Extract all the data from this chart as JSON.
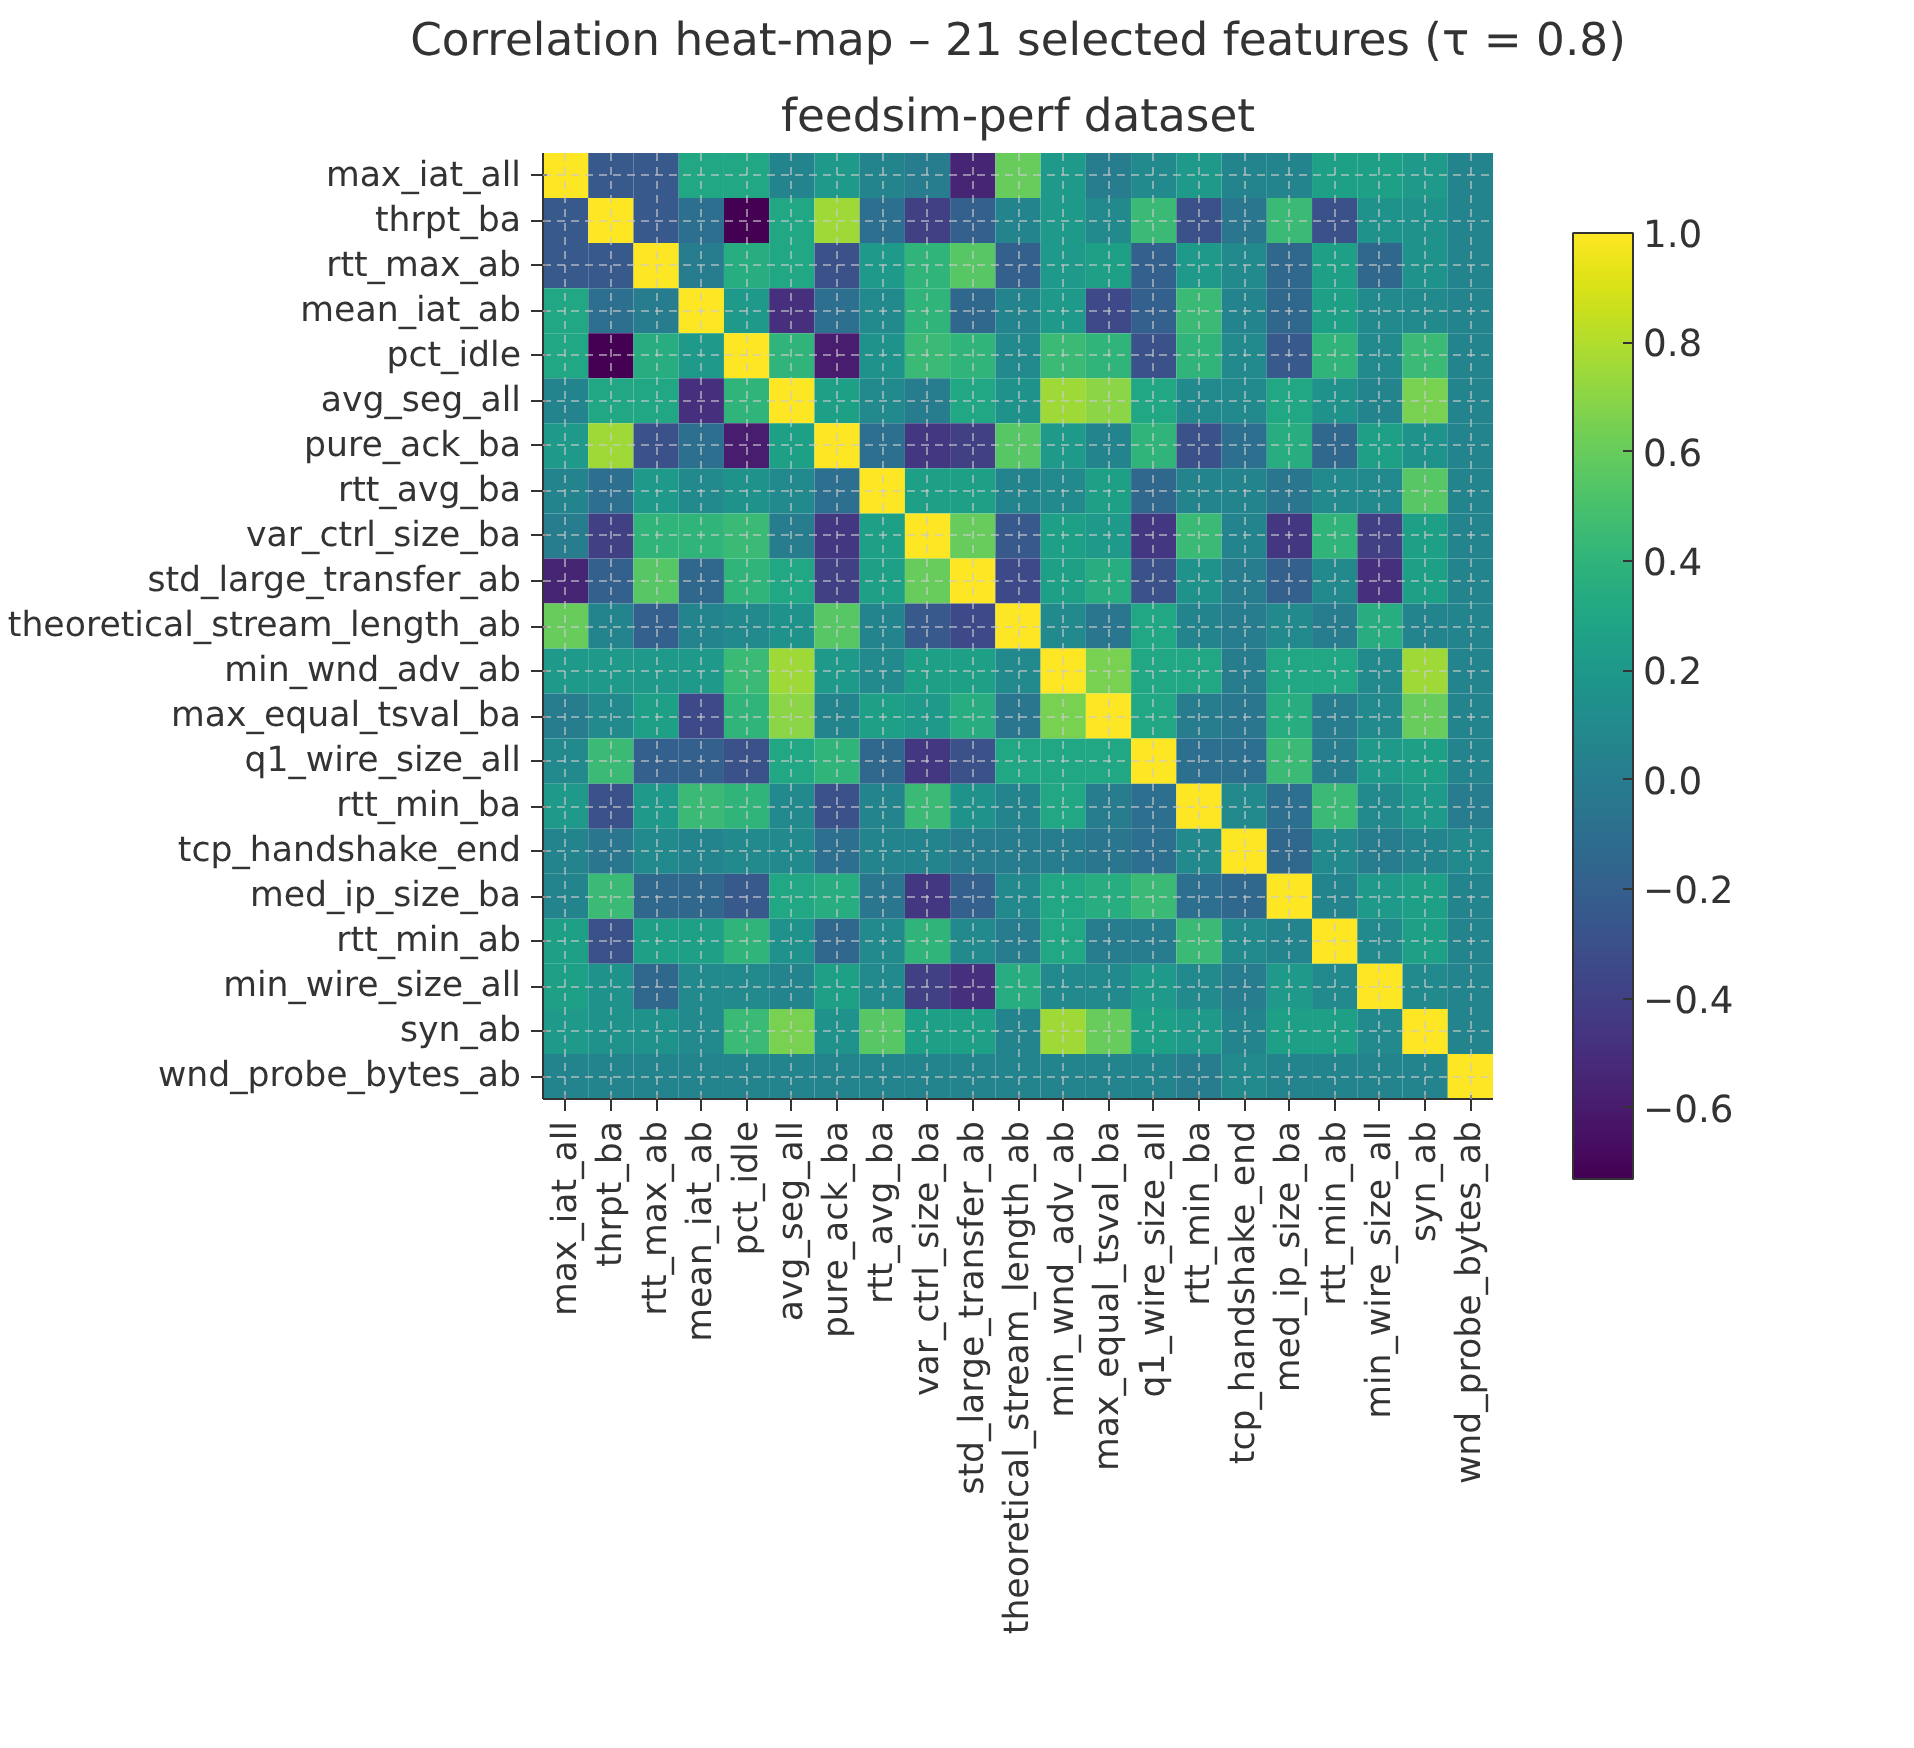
{
  "chart_data": {
    "type": "heatmap",
    "title": "Correlation heat-map – 21 selected features (τ = 0.8)",
    "subtitle": "feedsim-perf dataset",
    "categories": [
      "max_iat_all",
      "thrpt_ba",
      "rtt_max_ab",
      "mean_iat_ab",
      "pct_idle",
      "avg_seg_all",
      "pure_ack_ba",
      "rtt_avg_ba",
      "var_ctrl_size_ba",
      "std_large_transfer_ab",
      "theoretical_stream_length_ab",
      "min_wnd_adv_ab",
      "max_equal_tsval_ba",
      "q1_wire_size_all",
      "rtt_min_ba",
      "tcp_handshake_end",
      "med_ip_size_ba",
      "rtt_min_ab",
      "min_wire_size_all",
      "syn_ab",
      "wnd_probe_bytes_ab"
    ],
    "y_categories": [
      "max_iat_all",
      "thrpt_ba",
      "rtt_max_ab",
      "mean_iat_ab",
      "pct_idle",
      "avg_seg_all",
      "pure_ack_ba",
      "rtt_avg_ba",
      "var_ctrl_size_ba",
      "std_large_transfer_ab",
      "theoretical_stream_length_ab",
      "min_wnd_adv_ab",
      "max_equal_tsval_ba",
      "q1_wire_size_all",
      "rtt_min_ba",
      "tcp_handshake_end",
      "med_ip_size_ba",
      "rtt_min_ab",
      "min_wire_size_all",
      "syn_ab",
      "wnd_probe_bytes_ab"
    ],
    "cells": [
      [
        1,
        -0.25,
        -0.25,
        0.3,
        0.3,
        0.05,
        0.2,
        0.05,
        0.0,
        -0.55,
        0.6,
        0.2,
        0.0,
        0.1,
        0.2,
        0.05,
        0.05,
        0.25,
        0.25,
        0.2,
        0.05
      ],
      [
        -0.25,
        1,
        -0.25,
        -0.1,
        -0.73,
        0.3,
        0.75,
        -0.1,
        -0.4,
        -0.2,
        0.05,
        0.2,
        0.1,
        0.45,
        -0.3,
        -0.05,
        0.45,
        -0.3,
        0.15,
        0.15,
        0.05
      ],
      [
        -0.25,
        -0.25,
        1,
        0.0,
        0.35,
        0.3,
        -0.3,
        0.2,
        0.4,
        0.55,
        -0.2,
        0.2,
        0.25,
        -0.2,
        0.2,
        0.1,
        -0.15,
        0.25,
        -0.15,
        0.15,
        0.05
      ],
      [
        0.3,
        -0.1,
        0.0,
        1,
        0.2,
        -0.5,
        -0.1,
        0.1,
        0.4,
        -0.15,
        0.05,
        0.2,
        -0.35,
        -0.2,
        0.45,
        0.05,
        -0.15,
        0.25,
        0.1,
        0.1,
        0.05
      ],
      [
        0.3,
        -0.73,
        0.35,
        0.2,
        1,
        0.4,
        -0.6,
        0.15,
        0.45,
        0.4,
        0.1,
        0.45,
        0.4,
        -0.3,
        0.4,
        0.1,
        -0.25,
        0.4,
        0.1,
        0.45,
        0.05
      ],
      [
        0.05,
        0.3,
        0.3,
        -0.5,
        0.4,
        1,
        0.25,
        0.1,
        0.0,
        0.3,
        0.15,
        0.75,
        0.7,
        0.3,
        0.1,
        0.1,
        0.3,
        0.15,
        0.05,
        0.65,
        0.05
      ],
      [
        0.2,
        0.75,
        -0.3,
        -0.1,
        -0.6,
        0.25,
        1,
        -0.1,
        -0.45,
        -0.4,
        0.55,
        0.2,
        0.05,
        0.4,
        -0.3,
        -0.1,
        0.35,
        -0.15,
        0.25,
        0.15,
        0.05
      ],
      [
        0.05,
        -0.1,
        0.2,
        0.1,
        0.15,
        0.1,
        -0.1,
        1,
        0.25,
        0.25,
        0.05,
        0.1,
        0.25,
        -0.15,
        0.05,
        0.05,
        -0.05,
        0.1,
        0.1,
        0.55,
        0.05
      ],
      [
        0.0,
        -0.4,
        0.4,
        0.4,
        0.45,
        0.0,
        -0.45,
        0.25,
        1,
        0.6,
        -0.25,
        0.25,
        0.2,
        -0.45,
        0.45,
        0.05,
        -0.45,
        0.4,
        -0.4,
        0.25,
        0.05
      ],
      [
        -0.55,
        -0.2,
        0.55,
        -0.15,
        0.4,
        0.3,
        -0.4,
        0.25,
        0.6,
        1,
        -0.35,
        0.25,
        0.35,
        -0.3,
        0.15,
        0.0,
        -0.2,
        0.1,
        -0.5,
        0.25,
        0.05
      ],
      [
        0.6,
        0.05,
        -0.2,
        0.05,
        0.1,
        0.15,
        0.55,
        0.05,
        -0.25,
        -0.35,
        1,
        0.1,
        -0.05,
        0.3,
        0.05,
        0.0,
        0.1,
        0.0,
        0.35,
        0.05,
        0.05
      ],
      [
        0.2,
        0.2,
        0.2,
        0.2,
        0.45,
        0.75,
        0.2,
        0.1,
        0.25,
        0.25,
        0.1,
        1,
        0.65,
        0.3,
        0.3,
        0.0,
        0.3,
        0.3,
        0.1,
        0.75,
        0.05
      ],
      [
        0.0,
        0.1,
        0.25,
        -0.35,
        0.4,
        0.7,
        0.05,
        0.25,
        0.2,
        0.35,
        -0.05,
        0.65,
        1,
        0.3,
        0.0,
        -0.05,
        0.35,
        0.0,
        0.1,
        0.6,
        0.05
      ],
      [
        0.1,
        0.45,
        -0.2,
        -0.2,
        -0.3,
        0.3,
        0.4,
        -0.15,
        -0.45,
        -0.3,
        0.3,
        0.3,
        0.3,
        1,
        -0.1,
        -0.1,
        0.45,
        0.0,
        0.2,
        0.25,
        0.05
      ],
      [
        0.2,
        -0.3,
        0.2,
        0.45,
        0.4,
        0.1,
        -0.3,
        0.05,
        0.45,
        0.15,
        0.05,
        0.3,
        0.0,
        -0.1,
        1,
        0.1,
        -0.1,
        0.45,
        0.1,
        0.2,
        0.0
      ],
      [
        0.05,
        -0.05,
        0.1,
        0.05,
        0.1,
        0.1,
        -0.1,
        0.05,
        0.05,
        0.0,
        0.0,
        0.0,
        -0.05,
        -0.1,
        0.1,
        1,
        -0.15,
        0.1,
        0.0,
        0.05,
        0.1
      ],
      [
        0.05,
        0.45,
        -0.15,
        -0.15,
        -0.25,
        0.3,
        0.35,
        -0.05,
        -0.45,
        -0.2,
        0.1,
        0.3,
        0.35,
        0.45,
        -0.1,
        -0.15,
        1,
        0.05,
        0.2,
        0.25,
        0.05
      ],
      [
        0.25,
        -0.3,
        0.25,
        0.25,
        0.4,
        0.15,
        -0.15,
        0.1,
        0.4,
        0.1,
        0.0,
        0.3,
        0.0,
        0.0,
        0.45,
        0.1,
        0.05,
        1,
        0.1,
        0.25,
        0.05
      ],
      [
        0.25,
        0.15,
        -0.15,
        0.1,
        0.1,
        0.05,
        0.25,
        0.1,
        -0.4,
        -0.5,
        0.35,
        0.1,
        0.1,
        0.2,
        0.1,
        0.0,
        0.2,
        0.1,
        1,
        0.1,
        0.05
      ],
      [
        0.2,
        0.15,
        0.15,
        0.1,
        0.45,
        0.65,
        0.15,
        0.55,
        0.25,
        0.25,
        0.05,
        0.75,
        0.6,
        0.25,
        0.2,
        0.05,
        0.25,
        0.25,
        0.1,
        1,
        0.05
      ],
      [
        0.05,
        0.05,
        0.05,
        0.05,
        0.05,
        0.05,
        0.05,
        0.05,
        0.05,
        0.05,
        0.05,
        0.05,
        0.05,
        0.05,
        0.0,
        0.1,
        0.05,
        0.05,
        0.05,
        0.05,
        1
      ]
    ],
    "clim": [
      -0.73,
      1.0
    ],
    "cticks": [
      {
        "value": -0.6,
        "label": "−0.6"
      },
      {
        "value": -0.4,
        "label": "−0.4"
      },
      {
        "value": -0.2,
        "label": "−0.2"
      },
      {
        "value": 0.0,
        "label": "0.0"
      },
      {
        "value": 0.2,
        "label": "0.2"
      },
      {
        "value": 0.4,
        "label": "0.4"
      },
      {
        "value": 0.6,
        "label": "0.6"
      },
      {
        "value": 0.8,
        "label": "0.8"
      },
      {
        "value": 1.0,
        "label": "1.0"
      }
    ],
    "grid": true
  }
}
